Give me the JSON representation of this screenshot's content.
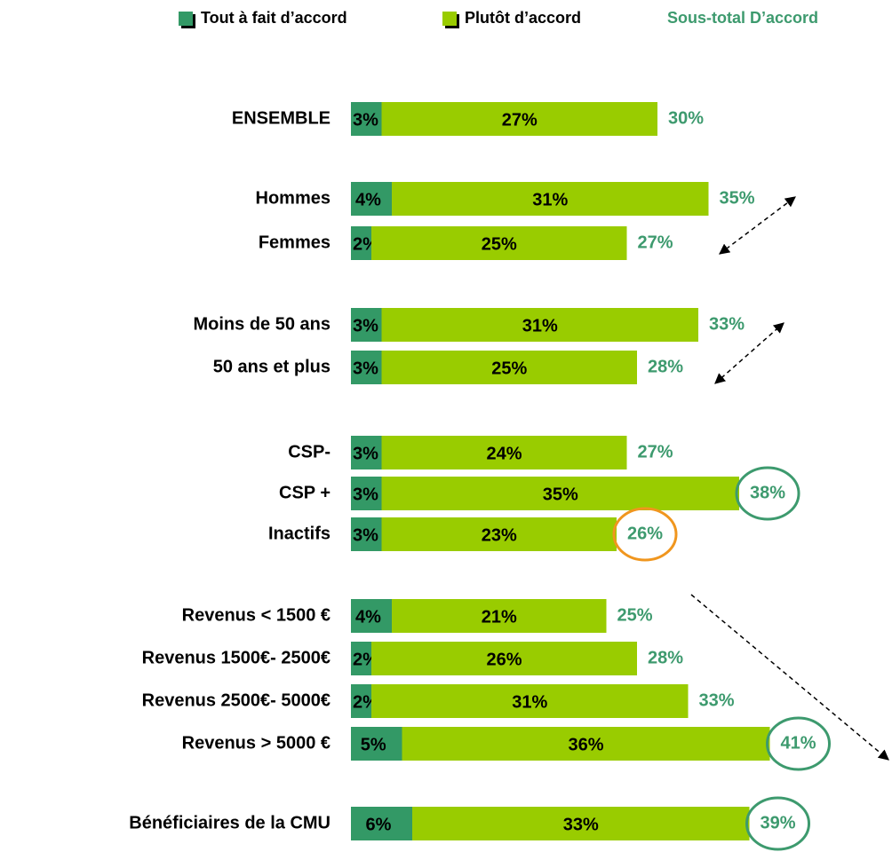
{
  "chart_data": {
    "type": "stacked-bar-horizontal",
    "categories": [
      "ENSEMBLE",
      "Hommes",
      "Femmes",
      "Moins de 50 ans",
      "50 ans et plus",
      "CSP-",
      "CSP +",
      "Inactifs",
      "Revenus < 1500 €",
      "Revenus 1500€- 2500€",
      "Revenus 2500€- 5000€",
      "Revenus > 5000 €",
      "Bénéficiaires de la CMU"
    ],
    "series": [
      {
        "name": "Tout à fait d’accord",
        "color": "#339966",
        "values": [
          3,
          4,
          2,
          3,
          3,
          3,
          3,
          3,
          4,
          2,
          2,
          5,
          6
        ],
        "value_labels": [
          "3%",
          "4%",
          "2%",
          "3%",
          "3%",
          "3%",
          "3%",
          "3%",
          "4%",
          "2%",
          "2%",
          "5%",
          "6%"
        ]
      },
      {
        "name": "Plutôt d’accord",
        "color": "#99cc00",
        "values": [
          27,
          31,
          25,
          31,
          25,
          24,
          35,
          23,
          21,
          26,
          31,
          36,
          33
        ],
        "value_labels": [
          "27%",
          "31%",
          "25%",
          "31%",
          "25%",
          "24%",
          "35%",
          "23%",
          "21%",
          "26%",
          "31%",
          "36%",
          "33%"
        ]
      }
    ],
    "totals": {
      "name": "Sous-total D’accord",
      "color": "#3d9a6e",
      "values": [
        30,
        35,
        27,
        33,
        28,
        27,
        38,
        26,
        25,
        28,
        33,
        41,
        39
      ],
      "value_labels": [
        "30%",
        "35%",
        "27%",
        "33%",
        "28%",
        "27%",
        "38%",
        "26%",
        "25%",
        "28%",
        "33%",
        "41%",
        "39%"
      ]
    }
  }
}
